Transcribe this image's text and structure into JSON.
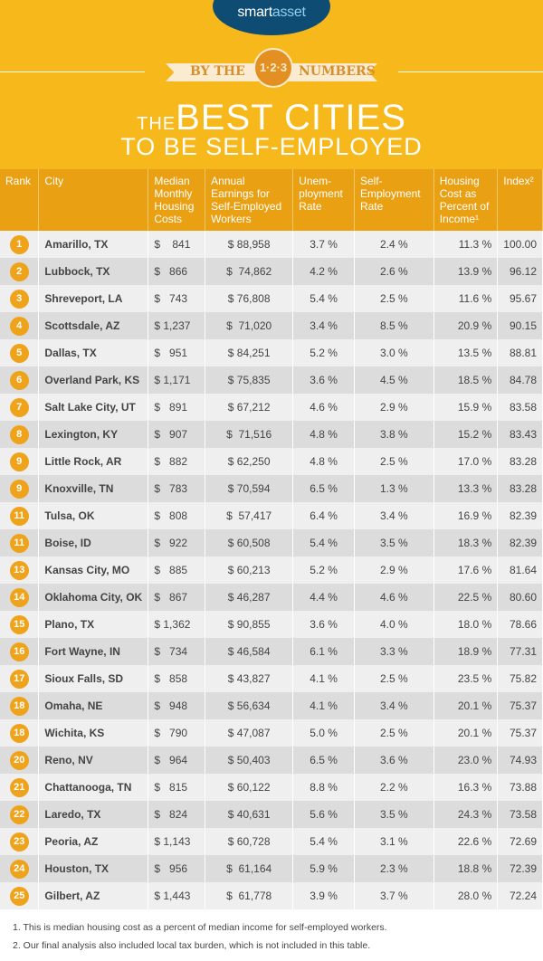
{
  "logo": {
    "part1": "smart",
    "part2": "asset"
  },
  "banner": {
    "left": "BY THE",
    "badge": "1·2·3",
    "right": "NUMBERS"
  },
  "title": {
    "small": "THE",
    "big": "BEST CITIES",
    "line2": "TO BE SELF-EMPLOYED"
  },
  "headers": [
    "Rank",
    "City",
    "Median Monthly Housing Costs",
    "Annual Earnings for Self-Employed Workers",
    "Unem-ployment Rate",
    "Self-Employment Rate",
    "Housing Cost as Percent of Income¹",
    "Index²"
  ],
  "rows": [
    [
      "1",
      "Amarillo, TX",
      "$    841",
      "$ 88,958",
      "3.7 %",
      "2.4 %",
      "11.3 %",
      "100.00"
    ],
    [
      "2",
      "Lubbock, TX",
      "$   866",
      "$  74,862",
      "4.2 %",
      "2.6 %",
      "13.9 %",
      "96.12"
    ],
    [
      "3",
      "Shreveport, LA",
      "$   743",
      "$ 76,808",
      "5.4 %",
      "2.5 %",
      "11.6 %",
      "95.67"
    ],
    [
      "4",
      "Scottsdale, AZ",
      "$ 1,237",
      "$  71,020",
      "3.4 %",
      "8.5 %",
      "20.9 %",
      "90.15"
    ],
    [
      "5",
      "Dallas, TX",
      "$   951",
      "$ 84,251",
      "5.2 %",
      "3.0 %",
      "13.5 %",
      "88.81"
    ],
    [
      "6",
      "Overland Park, KS",
      "$ 1,171",
      "$ 75,835",
      "3.6 %",
      "4.5 %",
      "18.5 %",
      "84.78"
    ],
    [
      "7",
      "Salt Lake City, UT",
      "$   891",
      "$ 67,212",
      "4.6 %",
      "2.9 %",
      "15.9 %",
      "83.58"
    ],
    [
      "8",
      "Lexington, KY",
      "$   907",
      "$  71,516",
      "4.8 %",
      "3.8 %",
      "15.2 %",
      "83.43"
    ],
    [
      "9",
      "Little Rock, AR",
      "$   882",
      "$ 62,250",
      "4.8 %",
      "2.5 %",
      "17.0 %",
      "83.28"
    ],
    [
      "9",
      "Knoxville, TN",
      "$   783",
      "$ 70,594",
      "6.5 %",
      "1.3 %",
      "13.3 %",
      "83.28"
    ],
    [
      "11",
      "Tulsa, OK",
      "$   808",
      "$  57,417",
      "6.4 %",
      "3.4 %",
      "16.9 %",
      "82.39"
    ],
    [
      "11",
      "Boise, ID",
      "$   922",
      "$ 60,508",
      "5.4 %",
      "3.5 %",
      "18.3 %",
      "82.39"
    ],
    [
      "13",
      "Kansas City, MO",
      "$   885",
      "$ 60,213",
      "5.2 %",
      "2.9 %",
      "17.6 %",
      "81.64"
    ],
    [
      "14",
      "Oklahoma City, OK",
      "$   867",
      "$ 46,287",
      "4.4 %",
      "4.6 %",
      "22.5 %",
      "80.60"
    ],
    [
      "15",
      "Plano, TX",
      "$ 1,362",
      "$ 90,855",
      "3.6 %",
      "4.0 %",
      "18.0 %",
      "78.66"
    ],
    [
      "16",
      "Fort Wayne, IN",
      "$   734",
      "$ 46,584",
      "6.1 %",
      "3.3 %",
      "18.9 %",
      "77.31"
    ],
    [
      "17",
      "Sioux Falls, SD",
      "$   858",
      "$ 43,827",
      "4.1 %",
      "2.5 %",
      "23.5 %",
      "75.82"
    ],
    [
      "18",
      "Omaha, NE",
      "$   948",
      "$ 56,634",
      "4.1 %",
      "3.4 %",
      "20.1 %",
      "75.37"
    ],
    [
      "18",
      "Wichita, KS",
      "$   790",
      "$ 47,087",
      "5.0 %",
      "2.5 %",
      "20.1 %",
      "75.37"
    ],
    [
      "20",
      "Reno, NV",
      "$   964",
      "$ 50,403",
      "6.5 %",
      "3.6 %",
      "23.0 %",
      "74.93"
    ],
    [
      "21",
      "Chattanooga, TN",
      "$   815",
      "$ 60,122",
      "8.8 %",
      "2.2 %",
      "16.3 %",
      "73.88"
    ],
    [
      "22",
      "Laredo, TX",
      "$   824",
      "$ 40,631",
      "5.6 %",
      "3.5 %",
      "24.3 %",
      "73.58"
    ],
    [
      "23",
      "Peoria, AZ",
      "$ 1,143",
      "$ 60,728",
      "5.4 %",
      "3.1 %",
      "22.6 %",
      "72.69"
    ],
    [
      "24",
      "Houston, TX",
      "$   956",
      "$  61,164",
      "5.9 %",
      "2.3 %",
      "18.8 %",
      "72.39"
    ],
    [
      "25",
      "Gilbert, AZ",
      "$ 1,443",
      "$  61,778",
      "3.9 %",
      "3.7 %",
      "28.0 %",
      "72.24"
    ]
  ],
  "footnotes": [
    "1.   This is median housing cost as a percent of median income for self-employed workers.",
    "2.   Our final analysis also included local tax burden, which is not included in this table."
  ],
  "colors": {
    "background": "#F7B81C",
    "header": "#E9A012",
    "logo": "#0F4C73"
  }
}
